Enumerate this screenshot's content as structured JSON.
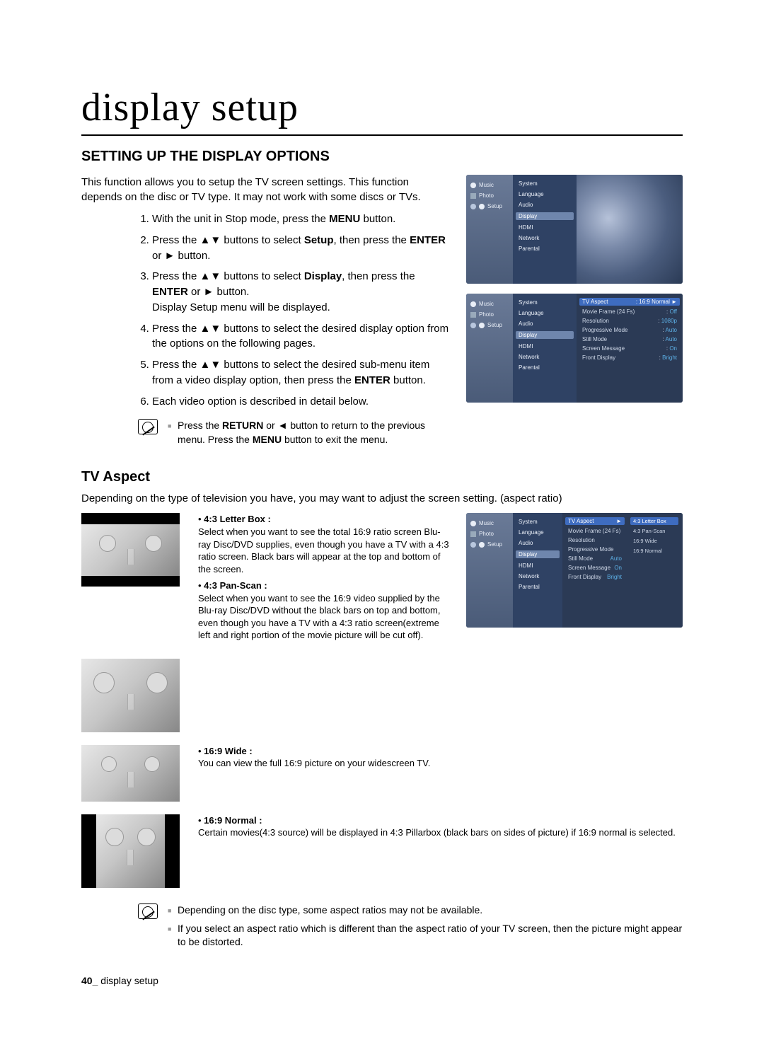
{
  "title": "display setup",
  "section": "SETTING UP THE DISPLAY OPTIONS",
  "intro": "This function allows you to setup the TV screen settings. This function depends on the disc or TV type. It may not work with some discs or TVs.",
  "steps": [
    {
      "html": "With the unit in Stop mode, press the <b>MENU</b> button."
    },
    {
      "html": "Press the <span class='arrow'>▲▼</span> buttons to select <b>Setup</b>, then press the <b>ENTER</b> or <span class='arrow'>►</span> button."
    },
    {
      "html": "Press the <span class='arrow'>▲▼</span> buttons to select <b>Display</b>, then press the <b>ENTER</b> or <span class='arrow'>►</span> button.<br>Display Setup menu will be displayed."
    },
    {
      "html": "Press the <span class='arrow'>▲▼</span> buttons to select the desired display option from the options on the following pages."
    },
    {
      "html": "Press the <span class='arrow'>▲▼</span> buttons to select the desired sub-menu item from a video display option, then press the <b>ENTER</b> button."
    },
    {
      "html": "Each video option is described in detail below."
    }
  ],
  "note1": [
    "Press the RETURN or ◄ button to return to the previous menu. Press the MENU button to exit the menu."
  ],
  "tv1": {
    "side": [
      "Music",
      "Photo",
      "Setup"
    ],
    "cats": [
      "System",
      "Language",
      "Audio",
      "Display",
      "HDMI",
      "Network",
      "Parental"
    ],
    "selectedCat": "Display"
  },
  "tv2": {
    "side": [
      "Music",
      "Photo",
      "Setup"
    ],
    "cats": [
      "System",
      "Language",
      "Audio",
      "Display",
      "HDMI",
      "Network",
      "Parental"
    ],
    "selectedCat": "Display",
    "sub": [
      {
        "l": "TV Aspect",
        "v": "16:9 Normal",
        "sel": true,
        "ch": true
      },
      {
        "l": "Movie Frame (24 Fs)",
        "v": "Off"
      },
      {
        "l": "Resolution",
        "v": "1080p"
      },
      {
        "l": "Progressive Mode",
        "v": "Auto"
      },
      {
        "l": "Still Mode",
        "v": "Auto"
      },
      {
        "l": "Screen Message",
        "v": "On"
      },
      {
        "l": "Front Display",
        "v": "Bright"
      }
    ]
  },
  "tvAspectHeading": "TV Aspect",
  "tvAspectIntro": "Depending on the type of television you have, you may want to adjust the screen setting. (aspect ratio)",
  "aspects": {
    "letterbox": {
      "title": "4:3 Letter Box :",
      "body": "Select when you want to see the total 16:9 ratio screen Blu-ray Disc/DVD supplies, even though you have a TV with a 4:3 ratio screen. Black bars will appear at the top and bottom of the screen."
    },
    "panscan": {
      "title": "4:3 Pan-Scan :",
      "body": "Select when you want to see the 16:9 video supplied by the Blu-ray Disc/DVD without the black bars on top and bottom, even though you have a TV with a 4:3 ratio screen(extreme left and right portion of the movie picture will be cut off)."
    },
    "wide": {
      "title": "16:9 Wide :",
      "body": "You can view the full 16:9 picture on your widescreen TV."
    },
    "normal": {
      "title": "16:9 Normal :",
      "body": "Certain movies(4:3 source) will be displayed in 4:3 Pillarbox (black bars on sides of picture) if 16:9 normal is selected."
    }
  },
  "tv3": {
    "side": [
      "Music",
      "Photo",
      "Setup"
    ],
    "cats": [
      "System",
      "Language",
      "Audio",
      "Display",
      "HDMI",
      "Network",
      "Parental"
    ],
    "selectedCat": "Display",
    "sub": [
      {
        "l": "TV Aspect",
        "v": "",
        "sel": true,
        "ch": true
      },
      {
        "l": "Movie Frame (24 Fs)",
        "v": ""
      },
      {
        "l": "Resolution",
        "v": ""
      },
      {
        "l": "Progressive Mode",
        "v": ""
      },
      {
        "l": "Still Mode",
        "v": "Auto"
      },
      {
        "l": "Screen Message",
        "v": "On"
      },
      {
        "l": "Front Display",
        "v": "Bright"
      }
    ],
    "opts": [
      {
        "l": "4:3 Letter Box",
        "sel": true
      },
      {
        "l": "4:3 Pan-Scan"
      },
      {
        "l": "16:9 Wide"
      },
      {
        "l": "16:9 Normal"
      }
    ]
  },
  "note2": [
    "Depending on the disc type, some aspect ratios may not be available.",
    "If you select an aspect ratio which is different than the aspect ratio of your TV screen, then the picture might appear to be distorted."
  ],
  "footer": {
    "page": "40_",
    "label": "display setup"
  }
}
